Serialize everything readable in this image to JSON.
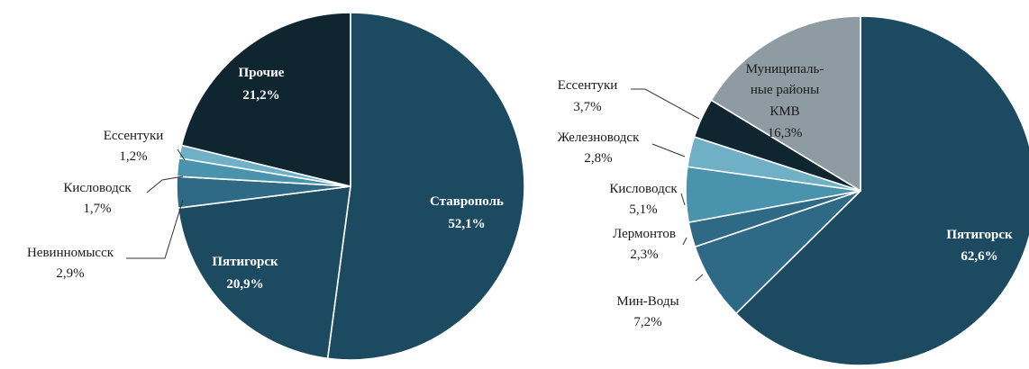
{
  "colors": {
    "dark_navy": "#0f2530",
    "navy": "#1c4a60",
    "steel_blue": "#2e6a85",
    "light_blue": "#4a93ad",
    "pale_blue": "#6fb0c6",
    "grey": "#8e9ba3",
    "label_white": "#ffffff",
    "label_dark": "#1a1a1a"
  },
  "chart_data": [
    {
      "type": "pie",
      "title": "",
      "slices": [
        {
          "name": "Ставрополь",
          "value": 52.1,
          "label": "52,1%",
          "color": "#1c4a60",
          "label_style": "inside"
        },
        {
          "name": "Пятигорск",
          "value": 20.9,
          "label": "20,9%",
          "color": "#1c4a60",
          "label_style": "inside"
        },
        {
          "name": "Невинномысск",
          "value": 2.9,
          "label": "2,9%",
          "color": "#2e6a85",
          "label_style": "outside"
        },
        {
          "name": "Кисловодск",
          "value": 1.7,
          "label": "1,7%",
          "color": "#4a93ad",
          "label_style": "outside"
        },
        {
          "name": "Ессентуки",
          "value": 1.2,
          "label": "1,2%",
          "color": "#6fb0c6",
          "label_style": "outside"
        },
        {
          "name": "Прочие",
          "value": 21.2,
          "label": "21,2%",
          "color": "#0f2530",
          "label_style": "inside"
        }
      ]
    },
    {
      "type": "pie",
      "title": "",
      "slices": [
        {
          "name": "Пятигорск",
          "value": 62.6,
          "label": "62,6%",
          "color": "#1c4a60",
          "label_style": "inside"
        },
        {
          "name": "Мин-Воды",
          "value": 7.2,
          "label": "7,2%",
          "color": "#2e6a85",
          "label_style": "outside"
        },
        {
          "name": "Лермонтов",
          "value": 2.3,
          "label": "2,3%",
          "color": "#2e6a85",
          "label_style": "outside"
        },
        {
          "name": "Кисловодск",
          "value": 5.1,
          "label": "5,1%",
          "color": "#4a93ad",
          "label_style": "outside"
        },
        {
          "name": "Железноводск",
          "value": 2.8,
          "label": "2,8%",
          "color": "#6fb0c6",
          "label_style": "outside"
        },
        {
          "name": "Ессентуки",
          "value": 3.7,
          "label": "3,7%",
          "color": "#0f2530",
          "label_style": "outside"
        },
        {
          "name": "Муниципаль-ные районы КМВ",
          "value": 16.3,
          "label": "16,3%",
          "color": "#8e9ba3",
          "label_style": "inside"
        }
      ]
    }
  ]
}
